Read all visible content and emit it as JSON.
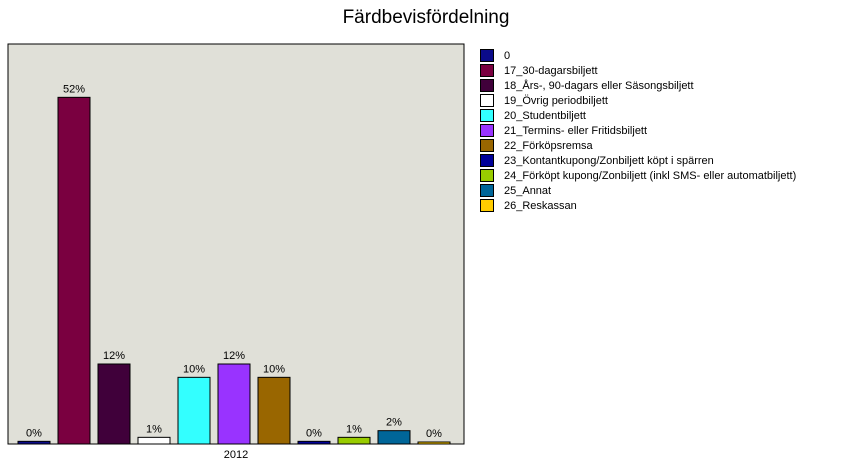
{
  "chart_data": {
    "type": "bar",
    "title": "Färdbevisfördelning",
    "categories": [
      "2012"
    ],
    "ylim": [
      0,
      60
    ],
    "grid": false,
    "legend_position": "right",
    "plot_background": "#e0e0d8",
    "series": [
      {
        "name": "0",
        "value": 0.4,
        "label": "0%",
        "color": "#0b0b8a"
      },
      {
        "name": "17_30-dagarsbiljett",
        "value": 52,
        "label": "52%",
        "color": "#7a0040"
      },
      {
        "name": "18_Års-, 90-dagars eller Säsongsbiljett",
        "value": 12,
        "label": "12%",
        "color": "#40003a"
      },
      {
        "name": "19_Övrig periodbiljett",
        "value": 1,
        "label": "1%",
        "color": "#ffffff"
      },
      {
        "name": "20_Studentbiljett",
        "value": 10,
        "label": "10%",
        "color": "#33ffff"
      },
      {
        "name": "21_Termins- eller Fritidsbiljett",
        "value": 12,
        "label": "12%",
        "color": "#9933ff"
      },
      {
        "name": "22_Förköpsremsa",
        "value": 10,
        "label": "10%",
        "color": "#996600"
      },
      {
        "name": "23_Kontantkupong/Zonbiljett köpt i spärren",
        "value": 0.4,
        "label": "0%",
        "color": "#000099"
      },
      {
        "name": "24_Förköpt kupong/Zonbiljett (inkl SMS- eller automatbiljett)",
        "value": 1,
        "label": "1%",
        "color": "#99cc00"
      },
      {
        "name": "25_Annat",
        "value": 2,
        "label": "2%",
        "color": "#006699"
      },
      {
        "name": "26_Reskassan",
        "value": 0.3,
        "label": "0%",
        "color": "#ffcc00"
      }
    ]
  }
}
